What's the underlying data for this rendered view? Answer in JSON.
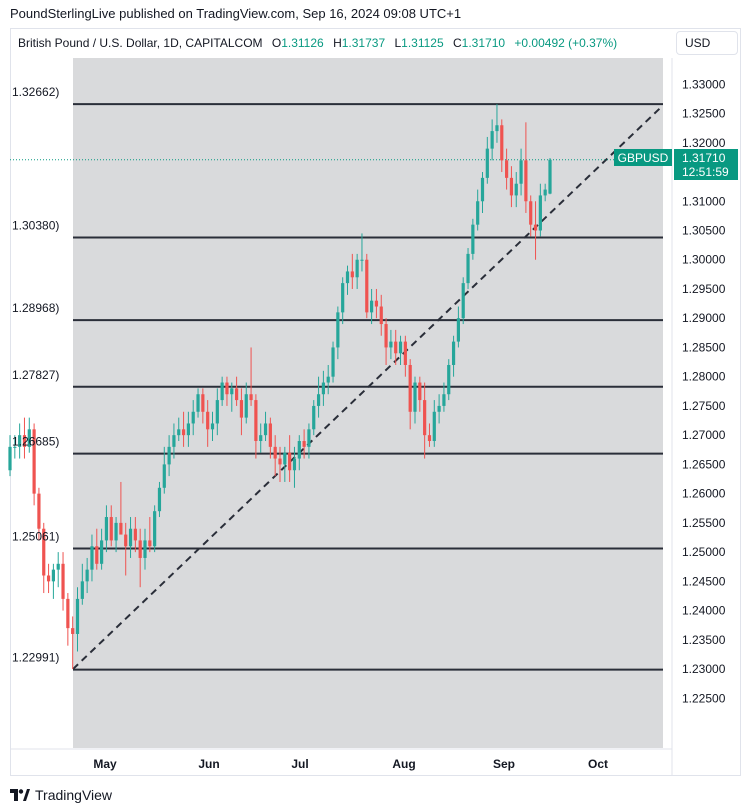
{
  "publisher_line": "PoundSterlingLive published on TradingView.com, Sep 16, 2024 09:08 UTC+1",
  "legend": {
    "symbol": "British Pound / U.S. Dollar, 1D, CAPITALCOM",
    "open_label": "O",
    "open": "1.31126",
    "high_label": "H",
    "high": "1.31737",
    "low_label": "L",
    "low": "1.31125",
    "close_label": "C",
    "close": "1.31710",
    "change": "+0.00492 (+0.37%)"
  },
  "currency_button": "USD",
  "price_tag": {
    "symbol": "GBPUSD",
    "price": "1.31710",
    "countdown": "12:51:59"
  },
  "brand": "TradingView",
  "colors": {
    "up": "#26a69a",
    "down": "#ef5350",
    "shading": "#d9dadc",
    "accent": "#089981",
    "line": "#2a2e39"
  },
  "chart_data": {
    "type": "candlestick",
    "title": "British Pound / U.S. Dollar, 1D, CAPITALCOM",
    "y_axis": {
      "range": [
        1.2165,
        1.3345
      ],
      "ticks": [
        "1.33000",
        "1.32500",
        "1.32000",
        "1.31500",
        "1.31000",
        "1.30500",
        "1.30000",
        "1.29500",
        "1.29000",
        "1.28500",
        "1.28000",
        "1.27500",
        "1.27000",
        "1.26500",
        "1.26000",
        "1.25500",
        "1.25000",
        "1.24500",
        "1.24000",
        "1.23500",
        "1.23000",
        "1.22500"
      ]
    },
    "x_axis": {
      "months": [
        "May",
        "Jun",
        "Jul",
        "Aug",
        "Sep",
        "Oct"
      ]
    },
    "horizontal_levels": [
      {
        "label": "1.32662)",
        "value": 1.32662
      },
      {
        "label": "1.30380)",
        "value": 1.3038
      },
      {
        "label": "1.28968)",
        "value": 1.28968
      },
      {
        "label": "1.27827)",
        "value": 1.27827
      },
      {
        "label": "1.26685)",
        "value": 1.26685
      },
      {
        "label": "1.25061)",
        "value": 1.25061
      },
      {
        "label": "1.22991)",
        "value": 1.22991
      }
    ],
    "trendline": {
      "from": 1.23,
      "to": 1.3264
    },
    "last_price": 1.3171,
    "candles": [
      [
        1.264,
        1.27,
        1.263,
        1.268
      ],
      [
        1.268,
        1.27,
        1.266,
        1.268
      ],
      [
        1.268,
        1.272,
        1.266,
        1.27
      ],
      [
        1.27,
        1.273,
        1.266,
        1.268
      ],
      [
        1.268,
        1.273,
        1.267,
        1.271
      ],
      [
        1.271,
        1.272,
        1.258,
        1.26
      ],
      [
        1.26,
        1.261,
        1.252,
        1.254
      ],
      [
        1.254,
        1.255,
        1.243,
        1.246
      ],
      [
        1.246,
        1.248,
        1.243,
        1.245
      ],
      [
        1.245,
        1.248,
        1.242,
        1.247
      ],
      [
        1.247,
        1.25,
        1.244,
        1.248
      ],
      [
        1.248,
        1.25,
        1.24,
        1.242
      ],
      [
        1.242,
        1.243,
        1.234,
        1.237
      ],
      [
        1.237,
        1.239,
        1.23,
        1.236
      ],
      [
        1.236,
        1.244,
        1.233,
        1.242
      ],
      [
        1.242,
        1.248,
        1.241,
        1.245
      ],
      [
        1.245,
        1.249,
        1.243,
        1.247
      ],
      [
        1.247,
        1.253,
        1.245,
        1.251
      ],
      [
        1.251,
        1.254,
        1.247,
        1.248
      ],
      [
        1.248,
        1.254,
        1.247,
        1.252
      ],
      [
        1.252,
        1.258,
        1.25,
        1.256
      ],
      [
        1.256,
        1.258,
        1.251,
        1.252
      ],
      [
        1.252,
        1.256,
        1.25,
        1.255
      ],
      [
        1.255,
        1.262,
        1.254,
        1.253
      ],
      [
        1.253,
        1.255,
        1.246,
        1.251
      ],
      [
        1.251,
        1.256,
        1.249,
        1.254
      ],
      [
        1.254,
        1.256,
        1.25,
        1.252
      ],
      [
        1.252,
        1.254,
        1.244,
        1.249
      ],
      [
        1.249,
        1.254,
        1.247,
        1.252
      ],
      [
        1.252,
        1.256,
        1.25,
        1.251
      ],
      [
        1.251,
        1.258,
        1.25,
        1.257
      ],
      [
        1.257,
        1.262,
        1.256,
        1.261
      ],
      [
        1.261,
        1.268,
        1.26,
        1.265
      ],
      [
        1.265,
        1.27,
        1.263,
        1.268
      ],
      [
        1.268,
        1.272,
        1.266,
        1.27
      ],
      [
        1.27,
        1.273,
        1.269,
        1.271
      ],
      [
        1.271,
        1.274,
        1.268,
        1.27
      ],
      [
        1.27,
        1.274,
        1.268,
        1.272
      ],
      [
        1.272,
        1.276,
        1.27,
        1.274
      ],
      [
        1.274,
        1.278,
        1.273,
        1.277
      ],
      [
        1.277,
        1.278,
        1.272,
        1.274
      ],
      [
        1.274,
        1.276,
        1.268,
        1.271
      ],
      [
        1.271,
        1.274,
        1.269,
        1.272
      ],
      [
        1.272,
        1.278,
        1.27,
        1.276
      ],
      [
        1.276,
        1.28,
        1.275,
        1.279
      ],
      [
        1.279,
        1.28,
        1.275,
        1.277
      ],
      [
        1.277,
        1.279,
        1.274,
        1.278
      ],
      [
        1.278,
        1.28,
        1.275,
        1.276
      ],
      [
        1.276,
        1.278,
        1.27,
        1.273
      ],
      [
        1.273,
        1.279,
        1.272,
        1.277
      ],
      [
        1.277,
        1.285,
        1.275,
        1.276
      ],
      [
        1.276,
        1.277,
        1.266,
        1.269
      ],
      [
        1.269,
        1.272,
        1.267,
        1.27
      ],
      [
        1.27,
        1.274,
        1.269,
        1.272
      ],
      [
        1.272,
        1.273,
        1.266,
        1.268
      ],
      [
        1.268,
        1.27,
        1.263,
        1.266
      ],
      [
        1.266,
        1.268,
        1.262,
        1.265
      ],
      [
        1.265,
        1.268,
        1.262,
        1.267
      ],
      [
        1.267,
        1.27,
        1.262,
        1.264
      ],
      [
        1.264,
        1.268,
        1.261,
        1.266
      ],
      [
        1.266,
        1.27,
        1.264,
        1.269
      ],
      [
        1.269,
        1.271,
        1.266,
        1.268
      ],
      [
        1.268,
        1.272,
        1.266,
        1.271
      ],
      [
        1.271,
        1.276,
        1.27,
        1.275
      ],
      [
        1.275,
        1.28,
        1.273,
        1.277
      ],
      [
        1.277,
        1.281,
        1.275,
        1.279
      ],
      [
        1.279,
        1.282,
        1.277,
        1.28
      ],
      [
        1.28,
        1.286,
        1.279,
        1.285
      ],
      [
        1.285,
        1.292,
        1.283,
        1.291
      ],
      [
        1.291,
        1.297,
        1.289,
        1.296
      ],
      [
        1.296,
        1.299,
        1.294,
        1.298
      ],
      [
        1.298,
        1.301,
        1.295,
        1.297
      ],
      [
        1.297,
        1.301,
        1.295,
        1.3
      ],
      [
        1.3,
        1.3045,
        1.298,
        1.3
      ],
      [
        1.3,
        1.301,
        1.29,
        1.291
      ],
      [
        1.291,
        1.295,
        1.289,
        1.293
      ],
      [
        1.293,
        1.295,
        1.29,
        1.292
      ],
      [
        1.292,
        1.294,
        1.287,
        1.289
      ],
      [
        1.289,
        1.29,
        1.282,
        1.285
      ],
      [
        1.285,
        1.288,
        1.283,
        1.286
      ],
      [
        1.286,
        1.288,
        1.282,
        1.284
      ],
      [
        1.284,
        1.287,
        1.282,
        1.286
      ],
      [
        1.286,
        1.287,
        1.28,
        1.282
      ],
      [
        1.282,
        1.283,
        1.271,
        1.274
      ],
      [
        1.274,
        1.28,
        1.272,
        1.279
      ],
      [
        1.279,
        1.28,
        1.274,
        1.276
      ],
      [
        1.276,
        1.279,
        1.266,
        1.27
      ],
      [
        1.27,
        1.272,
        1.268,
        1.269
      ],
      [
        1.269,
        1.276,
        1.268,
        1.274
      ],
      [
        1.274,
        1.277,
        1.272,
        1.275
      ],
      [
        1.275,
        1.279,
        1.274,
        1.277
      ],
      [
        1.277,
        1.283,
        1.276,
        1.282
      ],
      [
        1.282,
        1.287,
        1.28,
        1.286
      ],
      [
        1.286,
        1.292,
        1.285,
        1.29
      ],
      [
        1.29,
        1.297,
        1.289,
        1.296
      ],
      [
        1.296,
        1.302,
        1.295,
        1.301
      ],
      [
        1.301,
        1.307,
        1.3,
        1.306
      ],
      [
        1.306,
        1.312,
        1.305,
        1.31
      ],
      [
        1.31,
        1.315,
        1.308,
        1.314
      ],
      [
        1.314,
        1.321,
        1.313,
        1.319
      ],
      [
        1.319,
        1.324,
        1.317,
        1.322
      ],
      [
        1.322,
        1.3266,
        1.32,
        1.323
      ],
      [
        1.323,
        1.324,
        1.315,
        1.317
      ],
      [
        1.317,
        1.319,
        1.312,
        1.314
      ],
      [
        1.314,
        1.316,
        1.309,
        1.311
      ],
      [
        1.311,
        1.315,
        1.309,
        1.313
      ],
      [
        1.313,
        1.319,
        1.311,
        1.317
      ],
      [
        1.317,
        1.3235,
        1.308,
        1.31
      ],
      [
        1.31,
        1.311,
        1.304,
        1.306
      ],
      [
        1.306,
        1.31,
        1.3,
        1.305
      ],
      [
        1.305,
        1.313,
        1.304,
        1.311
      ],
      [
        1.311,
        1.313,
        1.31,
        1.312
      ],
      [
        1.3113,
        1.3174,
        1.3112,
        1.3171
      ]
    ]
  }
}
